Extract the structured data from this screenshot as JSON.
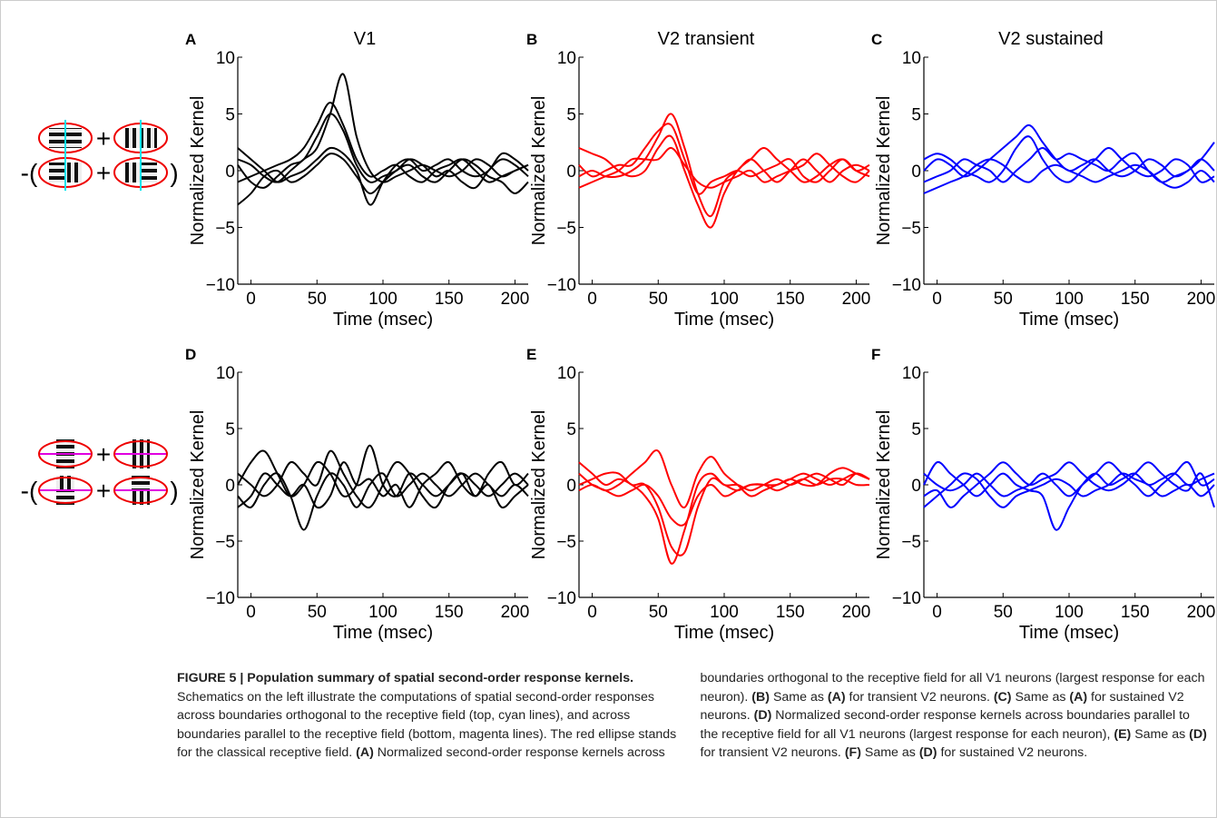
{
  "schematics": {
    "plus": "+",
    "open": "-(",
    "close": ")"
  },
  "chart_data": [
    {
      "type": "line",
      "panel": "A",
      "title": "V1",
      "ylabel": "Normalized Kernel",
      "xlabel": "Time (msec)",
      "x": [
        -10,
        0,
        10,
        20,
        30,
        40,
        50,
        60,
        70,
        80,
        90,
        100,
        110,
        120,
        130,
        140,
        150,
        160,
        170,
        180,
        190,
        200,
        210
      ],
      "xlim": [
        -10,
        210
      ],
      "ylim": [
        -10,
        10
      ],
      "xticks": [
        0,
        50,
        100,
        150,
        200
      ],
      "yticks": [
        {
          "value": -10,
          "label": "−10"
        },
        {
          "value": -5,
          "label": "−5"
        },
        0,
        5,
        10
      ],
      "series": [
        {
          "color": "#000000",
          "values": [
            1,
            0.5,
            -0.5,
            -1,
            0,
            1,
            2,
            5,
            8.5,
            3,
            0,
            -1,
            -0.5,
            0,
            0.5,
            0,
            -0.5,
            0,
            1,
            0.5,
            -0.5,
            0,
            0.5
          ]
        },
        {
          "color": "#000000",
          "values": [
            -1,
            -0.5,
            0,
            0.5,
            1,
            2,
            4,
            6,
            4,
            1,
            -0.5,
            0,
            0.5,
            -0.5,
            -1,
            0,
            0.5,
            1,
            0,
            -1,
            -0.5,
            0,
            0.5
          ]
        },
        {
          "color": "#000000",
          "values": [
            0.5,
            -1,
            -1.5,
            -0.5,
            0.5,
            1,
            3,
            5,
            3.5,
            0.5,
            -1,
            -0.5,
            0,
            1,
            0.5,
            -0.5,
            0,
            -1,
            -1.5,
            0,
            1,
            0.5,
            -0.5
          ]
        },
        {
          "color": "#000000",
          "values": [
            -3,
            -2,
            -0.5,
            0,
            -1,
            -0.5,
            0.5,
            1.5,
            1,
            -0.5,
            -2,
            -1,
            0,
            0.5,
            -0.5,
            -1,
            0,
            1,
            0.5,
            -0.5,
            -1,
            -2,
            -1
          ]
        },
        {
          "color": "#000000",
          "values": [
            2,
            1,
            0,
            -1,
            -0.5,
            0,
            1,
            2,
            1.5,
            0,
            -3,
            -1,
            0.5,
            1,
            0,
            0.5,
            1,
            0,
            -0.5,
            0,
            1.5,
            1,
            0
          ]
        }
      ]
    },
    {
      "type": "line",
      "panel": "B",
      "title": "V2 transient",
      "ylabel": "Normalized Kernel",
      "xlabel": "Time (msec)",
      "x": [
        -10,
        0,
        10,
        20,
        30,
        40,
        50,
        60,
        70,
        80,
        90,
        100,
        110,
        120,
        130,
        140,
        150,
        160,
        170,
        180,
        190,
        200,
        210
      ],
      "xlim": [
        -10,
        210
      ],
      "ylim": [
        -10,
        10
      ],
      "xticks": [
        0,
        50,
        100,
        150,
        200
      ],
      "yticks": [
        {
          "value": -10,
          "label": "−10"
        },
        {
          "value": -5,
          "label": "−5"
        },
        0,
        5,
        10
      ],
      "series": [
        {
          "color": "#ff0000",
          "values": [
            -0.5,
            0,
            -0.5,
            -0.5,
            0,
            1,
            3,
            5,
            2,
            -2,
            -4,
            -1,
            0,
            1,
            0,
            -1,
            0,
            1,
            0,
            -1,
            0,
            0.5,
            0
          ]
        },
        {
          "color": "#ff0000",
          "values": [
            0.5,
            -0.5,
            0,
            0.5,
            0.5,
            2,
            3.5,
            4,
            1,
            -2,
            -1,
            -0.5,
            0,
            -0.5,
            0,
            0.5,
            1,
            -0.5,
            -1,
            0,
            1,
            0,
            -0.5
          ]
        },
        {
          "color": "#ff0000",
          "values": [
            2,
            1.5,
            1,
            0,
            -0.5,
            0,
            2,
            3,
            0,
            -3,
            -5,
            -2,
            0,
            1,
            2,
            1,
            0,
            -1,
            -0.5,
            0.5,
            1,
            0,
            0.5
          ]
        },
        {
          "color": "#ff0000",
          "values": [
            -1.5,
            -1,
            -0.5,
            0,
            1,
            1,
            1,
            2,
            0.5,
            -1,
            -1.5,
            -1,
            -0.5,
            0,
            -1,
            -0.5,
            0,
            0.5,
            1.5,
            0.5,
            -0.5,
            -1,
            0
          ]
        }
      ]
    },
    {
      "type": "line",
      "panel": "C",
      "title": "V2 sustained",
      "ylabel": "Normalized Kernel",
      "xlabel": "Time (msec)",
      "x": [
        -10,
        0,
        10,
        20,
        30,
        40,
        50,
        60,
        70,
        80,
        90,
        100,
        110,
        120,
        130,
        140,
        150,
        160,
        170,
        180,
        190,
        200,
        210
      ],
      "xlim": [
        -10,
        210
      ],
      "ylim": [
        -10,
        10
      ],
      "xticks": [
        0,
        50,
        100,
        150,
        200
      ],
      "yticks": [
        {
          "value": -10,
          "label": "−10"
        },
        {
          "value": -5,
          "label": "−5"
        },
        0,
        5,
        10
      ],
      "series": [
        {
          "color": "#0000ff",
          "values": [
            0,
            1,
            0.5,
            -0.5,
            0,
            1,
            2,
            3,
            4,
            2.5,
            1,
            0,
            0.5,
            1,
            0,
            -0.5,
            0,
            1,
            0.5,
            -0.5,
            0,
            1,
            2.5
          ]
        },
        {
          "color": "#0000ff",
          "values": [
            -1,
            -0.5,
            0,
            1,
            0.5,
            0,
            -1,
            0,
            1,
            2,
            1,
            1.5,
            1,
            0.5,
            0,
            1,
            1.5,
            0,
            -1,
            -0.5,
            0,
            1,
            0
          ]
        },
        {
          "color": "#0000ff",
          "values": [
            1,
            1.5,
            1,
            0,
            -0.5,
            -1,
            0,
            2,
            3,
            1,
            -0.5,
            -1,
            0,
            1,
            2,
            1,
            0,
            -0.5,
            0,
            1,
            0.5,
            -1,
            -0.5
          ]
        },
        {
          "color": "#0000ff",
          "values": [
            -2,
            -1.5,
            -1,
            -0.5,
            0.5,
            1,
            0.5,
            -0.5,
            -1,
            0,
            0.5,
            0,
            -0.5,
            -1,
            -0.5,
            0,
            0.5,
            0,
            -1,
            -1.5,
            -1,
            0,
            -1
          ]
        }
      ]
    },
    {
      "type": "line",
      "panel": "D",
      "ylabel": "Normalized Kernel",
      "xlabel": "Time (msec)",
      "x": [
        -10,
        0,
        10,
        20,
        30,
        40,
        50,
        60,
        70,
        80,
        90,
        100,
        110,
        120,
        130,
        140,
        150,
        160,
        170,
        180,
        190,
        200,
        210
      ],
      "xlim": [
        -10,
        210
      ],
      "ylim": [
        -10,
        10
      ],
      "xticks": [
        0,
        50,
        100,
        150,
        200
      ],
      "yticks": [
        {
          "value": -10,
          "label": "−10"
        },
        {
          "value": -5,
          "label": "−5"
        },
        0,
        5,
        10
      ],
      "series": [
        {
          "color": "#000000",
          "values": [
            0,
            2,
            3,
            1,
            -1,
            0,
            2,
            1,
            -1,
            0,
            3.5,
            0,
            -1,
            1,
            0,
            -1,
            0,
            1,
            0,
            -1,
            0,
            1,
            0
          ]
        },
        {
          "color": "#000000",
          "values": [
            -1,
            -2,
            0,
            1,
            -1,
            -4,
            -1,
            1,
            0,
            -2,
            0,
            1,
            -1,
            0,
            1,
            0,
            -1,
            0,
            1,
            0,
            -1,
            0,
            -1
          ]
        },
        {
          "color": "#000000",
          "values": [
            1,
            0,
            -1,
            0,
            2,
            1,
            0,
            3,
            1,
            -1,
            -2,
            0,
            2,
            1,
            -1,
            -2,
            0,
            1,
            -1,
            1,
            2,
            0,
            1
          ]
        },
        {
          "color": "#000000",
          "values": [
            -2,
            -1,
            1,
            0,
            -1,
            0,
            -2,
            -1,
            2,
            0,
            0.5,
            -1,
            0,
            -2,
            0,
            1,
            2,
            0,
            -1,
            0,
            -2,
            -1,
            0
          ]
        }
      ]
    },
    {
      "type": "line",
      "panel": "E",
      "ylabel": "Normalized Kernel",
      "xlabel": "Time (msec)",
      "x": [
        -10,
        0,
        10,
        20,
        30,
        40,
        50,
        60,
        70,
        80,
        90,
        100,
        110,
        120,
        130,
        140,
        150,
        160,
        170,
        180,
        190,
        200,
        210
      ],
      "xlim": [
        -10,
        210
      ],
      "ylim": [
        -10,
        10
      ],
      "xticks": [
        0,
        50,
        100,
        150,
        200
      ],
      "yticks": [
        {
          "value": -10,
          "label": "−10"
        },
        {
          "value": -5,
          "label": "−5"
        },
        0,
        5,
        10
      ],
      "series": [
        {
          "color": "#ff0000",
          "values": [
            2,
            1,
            0,
            0.5,
            0,
            -1,
            -3,
            -7,
            -4,
            0,
            1,
            0,
            0,
            -0.5,
            0,
            0.5,
            0,
            0.5,
            1,
            0.5,
            0,
            1,
            0.5
          ]
        },
        {
          "color": "#ff0000",
          "values": [
            0,
            0.5,
            1,
            1,
            0,
            0,
            -2,
            -5.5,
            -6,
            -2,
            0.5,
            0,
            -0.5,
            0,
            0,
            -0.5,
            0,
            0.5,
            0,
            0.5,
            0.5,
            0,
            0
          ]
        },
        {
          "color": "#ff0000",
          "values": [
            -0.5,
            0,
            -0.5,
            0,
            1,
            2,
            3,
            0,
            -2,
            1,
            2.5,
            1,
            0,
            -1,
            -0.5,
            0,
            0.5,
            1,
            0.5,
            0,
            0.5,
            1,
            0.5
          ]
        },
        {
          "color": "#ff0000",
          "values": [
            1,
            0,
            -0.5,
            -1,
            -0.5,
            0,
            -1,
            -3,
            -3.5,
            -1,
            0,
            -1,
            -0.5,
            0,
            0,
            0,
            0.5,
            0,
            0,
            1,
            1.5,
            1,
            0.5
          ]
        }
      ]
    },
    {
      "type": "line",
      "panel": "F",
      "ylabel": "Normalized Kernel",
      "xlabel": "Time (msec)",
      "x": [
        -10,
        0,
        10,
        20,
        30,
        40,
        50,
        60,
        70,
        80,
        90,
        100,
        110,
        120,
        130,
        140,
        150,
        160,
        170,
        180,
        190,
        200,
        210
      ],
      "xlim": [
        -10,
        210
      ],
      "ylim": [
        -10,
        10
      ],
      "xticks": [
        0,
        50,
        100,
        150,
        200
      ],
      "yticks": [
        {
          "value": -10,
          "label": "−10"
        },
        {
          "value": -5,
          "label": "−5"
        },
        0,
        5,
        10
      ],
      "series": [
        {
          "color": "#0000ff",
          "values": [
            0,
            2,
            1,
            0,
            -1,
            0,
            1,
            0,
            -0.5,
            -1,
            -4,
            -2,
            0,
            1,
            0,
            0.5,
            1,
            0,
            0.5,
            1,
            0,
            0.5,
            1
          ]
        },
        {
          "color": "#0000ff",
          "values": [
            -1,
            -0.5,
            -2,
            -1,
            0,
            1,
            2,
            1,
            0,
            0.5,
            1,
            2,
            1,
            0,
            -0.5,
            0,
            1,
            2,
            1,
            0,
            -0.5,
            1,
            -2
          ]
        },
        {
          "color": "#0000ff",
          "values": [
            1,
            0,
            -0.5,
            0,
            1,
            0,
            -1,
            -0.5,
            0,
            1,
            0,
            -1,
            0,
            1,
            2,
            1,
            0,
            -1,
            0,
            1,
            2,
            0,
            0.5
          ]
        },
        {
          "color": "#0000ff",
          "values": [
            -2,
            -1,
            0,
            1,
            0.5,
            -1,
            -2,
            -1,
            -0.5,
            0,
            0.5,
            0,
            -1,
            -0.5,
            0,
            1,
            0.5,
            0,
            -1,
            -0.5,
            0,
            -1,
            0
          ]
        }
      ]
    }
  ],
  "caption": [
    {
      "text": "FIGURE 5 | Population summary of spatial second-order response kernels.",
      "bold": true
    },
    {
      "text": " Schematics on the left illustrate the computations of spatial second-order responses across boundaries orthogonal to the receptive field (top, cyan lines), and across boundaries parallel to the receptive field (bottom, magenta lines). The red ellipse stands for the classical receptive field. ",
      "bold": false
    },
    {
      "text": "(A)",
      "bold": true
    },
    {
      "text": " Normalized second-order response kernels across boundaries orthogonal to the receptive field for all V1 neurons (largest response for each neuron). ",
      "bold": false
    },
    {
      "text": "(B)",
      "bold": true
    },
    {
      "text": " Same as ",
      "bold": false
    },
    {
      "text": "(A)",
      "bold": true
    },
    {
      "text": " for transient V2 neurons. ",
      "bold": false
    },
    {
      "text": "(C)",
      "bold": true
    },
    {
      "text": " Same as ",
      "bold": false
    },
    {
      "text": "(A)",
      "bold": true
    },
    {
      "text": " for sustained V2 neurons. ",
      "bold": false
    },
    {
      "text": "(D)",
      "bold": true
    },
    {
      "text": " Normalized second-order response kernels across boundaries parallel to the receptive field for all V1 neurons (largest response for each neuron), ",
      "bold": false
    },
    {
      "text": "(E)",
      "bold": true
    },
    {
      "text": " Same as ",
      "bold": false
    },
    {
      "text": "(D)",
      "bold": true
    },
    {
      "text": " for transient V2 neurons. ",
      "bold": false
    },
    {
      "text": "(F)",
      "bold": true
    },
    {
      "text": " Same as ",
      "bold": false
    },
    {
      "text": "(D)",
      "bold": true
    },
    {
      "text": " for sustained V2 neurons.",
      "bold": false
    }
  ]
}
